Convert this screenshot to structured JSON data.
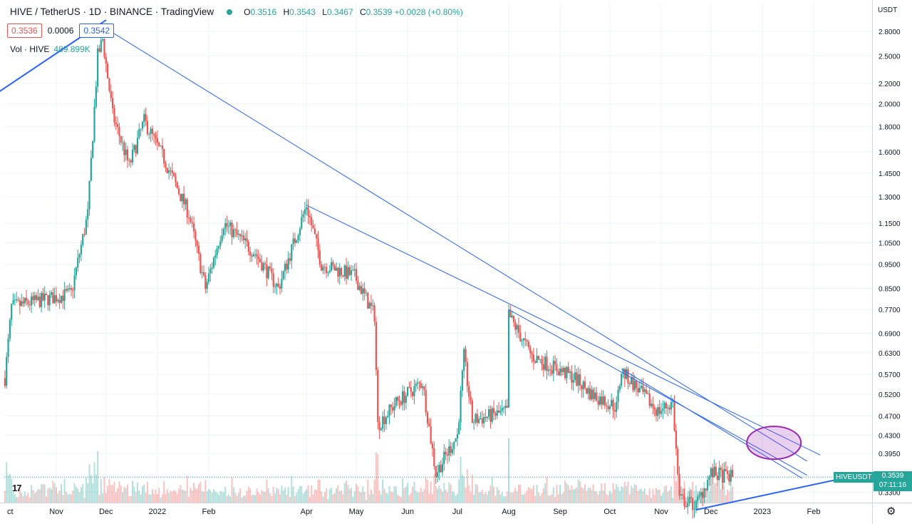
{
  "header": {
    "title": "HIVE / TetherUS · 1D · BINANCE · TradingView",
    "ohlc": [
      {
        "k": "O",
        "v": "0.3516"
      },
      {
        "k": "H",
        "v": "0.3543"
      },
      {
        "k": "L",
        "v": "0.3467"
      },
      {
        "k": "C",
        "v": "0.3539 +0.0028 (+0.80%)"
      }
    ],
    "bid": "0.3536",
    "spread": "0.0006",
    "ask": "0.3542",
    "volume_label": "Vol · HIVE",
    "volume_value": "489.899K"
  },
  "axis_unit": "USDT",
  "symbol_label": "HIVEUSDT",
  "last_price": "0.3539",
  "countdown": "07:11:16",
  "logo_text": "17",
  "colors": {
    "up": "#26a69a",
    "down": "#ef5350",
    "line": "#2962ff",
    "ellipse": "#9c27b0"
  },
  "chart_data": {
    "type": "candlestick",
    "scale": "log",
    "y_ticks": [
      "2.8000",
      "2.5000",
      "2.2000",
      "2.0000",
      "1.8000",
      "1.6000",
      "1.4500",
      "1.3000",
      "1.1500",
      "1.0500",
      "0.9500",
      "0.8500",
      "0.7700",
      "0.6900",
      "0.6300",
      "0.5700",
      "0.5200",
      "0.4700",
      "0.4300",
      "0.3950",
      "0.3300"
    ],
    "x_ticks": [
      "ct",
      "Nov",
      "Dec",
      "2022",
      "Feb",
      "Apr",
      "May",
      "Jun",
      "Jul",
      "Aug",
      "Sep",
      "Oct",
      "Nov",
      "Dec",
      "2023",
      "Feb"
    ],
    "price_anchors": [
      {
        "date": "2021-10-01",
        "price": 0.56
      },
      {
        "date": "2021-10-05",
        "price": 0.78
      },
      {
        "date": "2021-10-20",
        "price": 0.8
      },
      {
        "date": "2021-11-10",
        "price": 0.83
      },
      {
        "date": "2021-11-20",
        "price": 1.2
      },
      {
        "date": "2021-11-26",
        "price": 2.5
      },
      {
        "date": "2021-11-29",
        "price": 2.7
      },
      {
        "date": "2021-12-05",
        "price": 1.9
      },
      {
        "date": "2021-12-15",
        "price": 1.5
      },
      {
        "date": "2021-12-24",
        "price": 1.85
      },
      {
        "date": "2022-01-05",
        "price": 1.55
      },
      {
        "date": "2022-01-20",
        "price": 1.2
      },
      {
        "date": "2022-01-30",
        "price": 0.85
      },
      {
        "date": "2022-02-10",
        "price": 1.15
      },
      {
        "date": "2022-03-01",
        "price": 1.0
      },
      {
        "date": "2022-03-15",
        "price": 0.85
      },
      {
        "date": "2022-04-01",
        "price": 1.25
      },
      {
        "date": "2022-04-10",
        "price": 0.95
      },
      {
        "date": "2022-04-30",
        "price": 0.9
      },
      {
        "date": "2022-05-12",
        "price": 0.75
      },
      {
        "date": "2022-05-14",
        "price": 0.45
      },
      {
        "date": "2022-05-25",
        "price": 0.5
      },
      {
        "date": "2022-06-10",
        "price": 0.55
      },
      {
        "date": "2022-06-18",
        "price": 0.36
      },
      {
        "date": "2022-07-01",
        "price": 0.43
      },
      {
        "date": "2022-07-05",
        "price": 0.62
      },
      {
        "date": "2022-07-10",
        "price": 0.46
      },
      {
        "date": "2022-07-31",
        "price": 0.48
      },
      {
        "date": "2022-08-01",
        "price": 0.75
      },
      {
        "date": "2022-08-15",
        "price": 0.62
      },
      {
        "date": "2022-09-10",
        "price": 0.56
      },
      {
        "date": "2022-09-20",
        "price": 0.52
      },
      {
        "date": "2022-10-05",
        "price": 0.49
      },
      {
        "date": "2022-10-08",
        "price": 0.58
      },
      {
        "date": "2022-10-30",
        "price": 0.48
      },
      {
        "date": "2022-11-08",
        "price": 0.5
      },
      {
        "date": "2022-11-12",
        "price": 0.32
      },
      {
        "date": "2022-11-22",
        "price": 0.31
      },
      {
        "date": "2022-12-01",
        "price": 0.36
      },
      {
        "date": "2022-12-14",
        "price": 0.3539
      }
    ],
    "trendlines": [
      {
        "from": {
          "date": "2021-11-30",
          "price": 2.85
        },
        "to": {
          "date": "2023-01-28",
          "price": 0.381
        }
      },
      {
        "from": {
          "date": "2022-04-01",
          "price": 1.25
        },
        "to": {
          "date": "2023-02-05",
          "price": 0.392
        }
      },
      {
        "from": {
          "date": "2022-08-01",
          "price": 0.77
        },
        "to": {
          "date": "2023-01-28",
          "price": 0.357
        }
      },
      {
        "from": {
          "date": "2022-10-08",
          "price": 0.585
        },
        "to": {
          "date": "2023-01-25",
          "price": 0.352
        }
      },
      {
        "from": {
          "date": "2021-09-26",
          "price": 2.1
        },
        "to": {
          "date": "2021-12-01",
          "price": 2.95
        }
      },
      {
        "from": {
          "date": "2022-11-22",
          "price": 0.304
        },
        "to": {
          "date": "2023-03-01",
          "price": 0.358
        }
      }
    ],
    "highlight_ellipse": {
      "date": "2023-01-08",
      "price": 0.415
    },
    "grid": true,
    "legend": "top-left"
  }
}
